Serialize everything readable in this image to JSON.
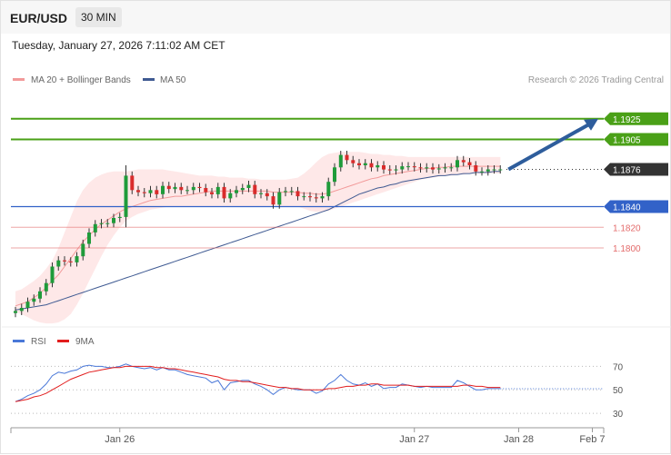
{
  "header": {
    "pair": "EUR/USD",
    "timeframe": "30 MIN"
  },
  "timestamp": "Tuesday, January 27, 2026 7:11:02 AM CET",
  "legend": {
    "ma20_label": "MA 20 + Bollinger Bands",
    "ma50_label": "MA 50",
    "credit": "Research © 2026 Trading Central"
  },
  "rsi_legend": {
    "rsi_label": "RSI",
    "ma_label": "9MA"
  },
  "colors": {
    "resistance": "#4aa017",
    "support": "#3262c8",
    "pivot_red": "#e36b6b",
    "current": "#333333",
    "band_fill": "#fde0e0",
    "ma20": "#f29a9a",
    "ma50": "#3f5a92",
    "up": "#1f9b3a",
    "down": "#d92b2b",
    "arrow": "#2e5d9c",
    "rsi": "#4a78d8",
    "rsi_ma": "#e21d1d"
  },
  "chart_data": {
    "type": "candlestick",
    "price_levels": [
      {
        "price": 1.1925,
        "label": "1.1925",
        "kind": "resistance"
      },
      {
        "price": 1.1905,
        "label": "1.1905",
        "kind": "resistance"
      },
      {
        "price": 1.1876,
        "label": "1.1876",
        "kind": "current"
      },
      {
        "price": 1.184,
        "label": "1.1840",
        "kind": "support"
      },
      {
        "price": 1.182,
        "label": "1.1820",
        "kind": "pivot"
      },
      {
        "price": 1.18,
        "label": "1.1800",
        "kind": "pivot"
      }
    ],
    "price_range": [
      1.1735,
      1.1945
    ],
    "closes": [
      1.1739,
      1.1742,
      1.1748,
      1.1751,
      1.1758,
      1.1766,
      1.1782,
      1.1788,
      1.1787,
      1.1786,
      1.1792,
      1.1804,
      1.1815,
      1.1823,
      1.1824,
      1.1824,
      1.1829,
      1.183,
      1.187,
      1.1856,
      1.1854,
      1.1853,
      1.1856,
      1.1852,
      1.186,
      1.1857,
      1.1859,
      1.1856,
      1.1856,
      1.1859,
      1.1858,
      1.1854,
      1.1852,
      1.1859,
      1.1848,
      1.1853,
      1.1856,
      1.1858,
      1.1861,
      1.1852,
      1.1853,
      1.185,
      1.1842,
      1.1854,
      1.1855,
      1.1855,
      1.185,
      1.185,
      1.1849,
      1.1848,
      1.185,
      1.1864,
      1.1878,
      1.189,
      1.1885,
      1.1882,
      1.188,
      1.1882,
      1.1878,
      1.188,
      1.1876,
      1.1875,
      1.1876,
      1.1879,
      1.1879,
      1.1878,
      1.1877,
      1.1878,
      1.1876,
      1.1877,
      1.1878,
      1.1878,
      1.1885,
      1.1883,
      1.188,
      1.1874,
      1.1874,
      1.1876,
      1.1876,
      1.1876
    ],
    "ma20": [
      1.1744,
      1.1746,
      1.1748,
      1.1752,
      1.1756,
      1.1762,
      1.1768,
      1.1774,
      1.1782,
      1.179,
      1.1798,
      1.1806,
      1.1812,
      1.1818,
      1.1823,
      1.1827,
      1.1831,
      1.1835,
      1.1838,
      1.184,
      1.1842,
      1.1844,
      1.1846,
      1.1847,
      1.1848,
      1.1849,
      1.185,
      1.185,
      1.1851,
      1.1852,
      1.1853,
      1.1854,
      1.1855,
      1.1855,
      1.1855,
      1.1855,
      1.1855,
      1.1855,
      1.1855,
      1.1855,
      1.1855,
      1.1855,
      1.1854,
      1.1854,
      1.1854,
      1.1854,
      1.1854,
      1.1853,
      1.1853,
      1.1852,
      1.1852,
      1.1853,
      1.1855,
      1.1857,
      1.1859,
      1.1861,
      1.1863,
      1.1865,
      1.1867,
      1.1868,
      1.187,
      1.1871,
      1.1872,
      1.1873,
      1.1874,
      1.1875,
      1.1876,
      1.1877,
      1.1877,
      1.1878,
      1.1878,
      1.1879,
      1.1879,
      1.1879,
      1.1879,
      1.1879,
      1.1879,
      1.1879,
      1.1879,
      1.1879
    ],
    "ma50": [
      1.174,
      1.1741,
      1.1742,
      1.1743,
      1.1744,
      1.1745,
      1.1747,
      1.1749,
      1.1751,
      1.1753,
      1.1755,
      1.1757,
      1.1759,
      1.1761,
      1.1763,
      1.1765,
      1.1767,
      1.1769,
      1.1771,
      1.1773,
      1.1775,
      1.1777,
      1.1779,
      1.1781,
      1.1783,
      1.1785,
      1.1787,
      1.1789,
      1.1791,
      1.1793,
      1.1795,
      1.1797,
      1.1799,
      1.1801,
      1.1803,
      1.1805,
      1.1807,
      1.1809,
      1.1811,
      1.1813,
      1.1815,
      1.1817,
      1.1819,
      1.1821,
      1.1823,
      1.1825,
      1.1827,
      1.1829,
      1.1831,
      1.1833,
      1.1835,
      1.1837,
      1.184,
      1.1843,
      1.1846,
      1.1849,
      1.1852,
      1.1854,
      1.1856,
      1.1858,
      1.1859,
      1.1861,
      1.1862,
      1.1864,
      1.1865,
      1.1866,
      1.1867,
      1.1868,
      1.1869,
      1.187,
      1.187,
      1.1871,
      1.1871,
      1.1872,
      1.1872,
      1.1873,
      1.1873,
      1.1873,
      1.1874,
      1.1874
    ],
    "bb_upper": [
      1.1758,
      1.176,
      1.1764,
      1.1768,
      1.1773,
      1.178,
      1.1788,
      1.18,
      1.1815,
      1.183,
      1.1845,
      1.1856,
      1.1863,
      1.1868,
      1.1871,
      1.1873,
      1.1874,
      1.1874,
      1.1874,
      1.1875,
      1.1876,
      1.1876,
      1.1876,
      1.1876,
      1.1876,
      1.1875,
      1.1874,
      1.1873,
      1.1872,
      1.1871,
      1.187,
      1.187,
      1.187,
      1.1869,
      1.1869,
      1.1868,
      1.1868,
      1.1868,
      1.1867,
      1.1867,
      1.1866,
      1.1866,
      1.1866,
      1.1866,
      1.1866,
      1.1867,
      1.1868,
      1.1872,
      1.1877,
      1.1883,
      1.1888,
      1.1891,
      1.1892,
      1.1893,
      1.1893,
      1.1893,
      1.1893,
      1.1892,
      1.1891,
      1.1891,
      1.189,
      1.189,
      1.1889,
      1.1889,
      1.1888,
      1.1888,
      1.1888,
      1.1888,
      1.1888,
      1.1888,
      1.1888,
      1.1888,
      1.1888,
      1.1888,
      1.1888,
      1.1888,
      1.1888,
      1.1888,
      1.1888,
      1.1888
    ],
    "bb_lower": [
      1.1738,
      1.1736,
      1.1733,
      1.173,
      1.1728,
      1.1727,
      1.1727,
      1.1728,
      1.1731,
      1.1736,
      1.1745,
      1.1756,
      1.1768,
      1.178,
      1.1792,
      1.1803,
      1.1812,
      1.182,
      1.1826,
      1.183,
      1.1833,
      1.1835,
      1.1837,
      1.1838,
      1.1839,
      1.184,
      1.184,
      1.184,
      1.184,
      1.184,
      1.184,
      1.184,
      1.184,
      1.184,
      1.184,
      1.184,
      1.184,
      1.184,
      1.184,
      1.184,
      1.184,
      1.184,
      1.184,
      1.184,
      1.184,
      1.184,
      1.184,
      1.1838,
      1.1836,
      1.1835,
      1.1835,
      1.1836,
      1.1838,
      1.184,
      1.1842,
      1.1844,
      1.1846,
      1.1848,
      1.185,
      1.1852,
      1.1854,
      1.1856,
      1.1858,
      1.186,
      1.1862,
      1.1864,
      1.1866,
      1.1867,
      1.1868,
      1.1869,
      1.187,
      1.187,
      1.1871,
      1.1871,
      1.1872,
      1.1872,
      1.1872,
      1.1872,
      1.1872,
      1.1872
    ],
    "projection_target": 1.1925,
    "rsi": [
      40,
      42,
      45,
      47,
      50,
      55,
      62,
      65,
      64,
      66,
      67,
      70,
      71,
      70,
      70,
      69,
      69,
      70,
      72,
      70,
      69,
      68,
      69,
      67,
      69,
      67,
      67,
      65,
      63,
      62,
      61,
      60,
      56,
      58,
      50,
      56,
      57,
      58,
      58,
      55,
      53,
      50,
      46,
      50,
      52,
      51,
      50,
      50,
      50,
      47,
      49,
      55,
      58,
      63,
      58,
      55,
      54,
      56,
      53,
      55,
      51,
      52,
      52,
      55,
      54,
      53,
      52,
      53,
      52,
      52,
      52,
      52,
      58,
      56,
      53,
      50,
      50,
      51,
      51,
      51
    ],
    "rsi_ma": [
      40,
      41,
      42,
      44,
      45,
      47,
      50,
      53,
      56,
      59,
      61,
      63,
      65,
      66,
      67,
      68,
      69,
      69,
      70,
      70,
      70,
      70,
      70,
      69,
      69,
      68,
      68,
      67,
      66,
      65,
      64,
      63,
      62,
      61,
      59,
      58,
      58,
      57,
      57,
      56,
      55,
      54,
      53,
      52,
      52,
      51,
      51,
      50,
      50,
      50,
      50,
      51,
      51,
      52,
      53,
      53,
      54,
      54,
      55,
      55,
      54,
      54,
      54,
      54,
      54,
      53,
      53,
      53,
      53,
      53,
      53,
      53,
      53,
      54,
      54,
      53,
      53,
      52,
      52,
      52
    ],
    "rsi_levels": [
      70,
      50,
      30
    ],
    "rsi_range": [
      20,
      85
    ],
    "x_ticks": [
      {
        "label": "Jan 26",
        "index": 17
      },
      {
        "label": "Jan 27",
        "index": 65
      },
      {
        "label": "Jan 28",
        "index": 82
      },
      {
        "label": "Feb 7",
        "index": 94
      }
    ]
  }
}
